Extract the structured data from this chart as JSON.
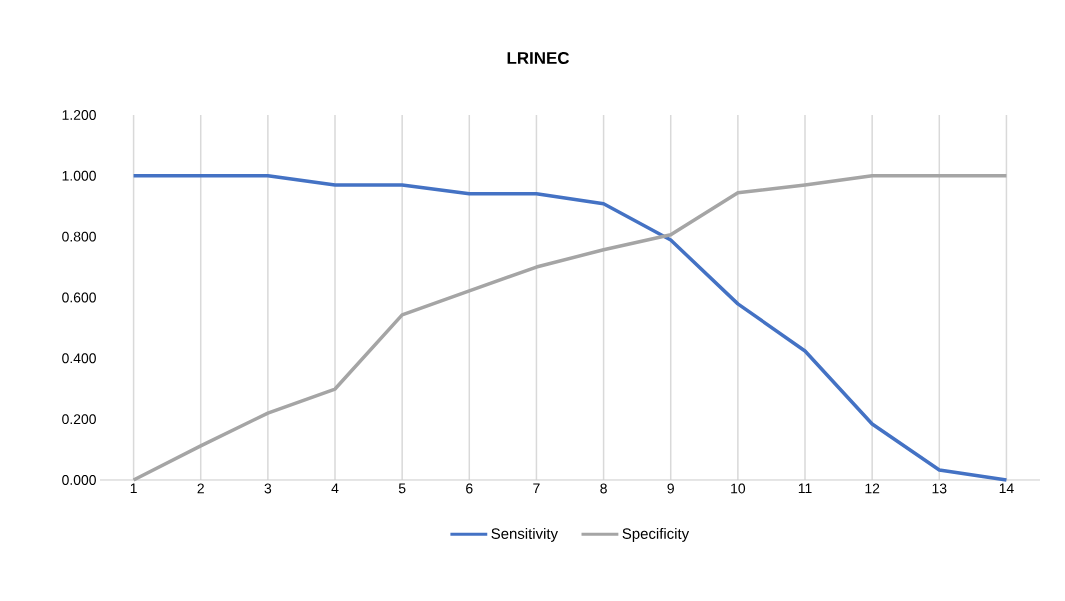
{
  "chart_data": {
    "type": "line",
    "title": "LRINEC",
    "categories": [
      "1",
      "2",
      "3",
      "4",
      "5",
      "6",
      "7",
      "8",
      "9",
      "10",
      "11",
      "12",
      "13",
      "14"
    ],
    "series": [
      {
        "name": "Sensitivity",
        "color": "#4472c4",
        "values": [
          1.0,
          1.0,
          1.0,
          0.97,
          0.97,
          0.941,
          0.941,
          0.908,
          0.789,
          0.579,
          0.424,
          0.184,
          0.033,
          0.0
        ]
      },
      {
        "name": "Specificity",
        "color": "#a5a5a5",
        "values": [
          0.0,
          0.112,
          0.22,
          0.299,
          0.543,
          0.622,
          0.7,
          0.757,
          0.806,
          0.944,
          0.97,
          1.0,
          1.0,
          1.0
        ]
      }
    ],
    "ylim": [
      0,
      1.2
    ],
    "yticks": [
      {
        "value": 0,
        "label": "0.000"
      },
      {
        "value": 0.2,
        "label": "0.200"
      },
      {
        "value": 0.4,
        "label": "0.400"
      },
      {
        "value": 0.6,
        "label": "0.600"
      },
      {
        "value": 0.8,
        "label": "0.800"
      },
      {
        "value": 1.0,
        "label": "1.000"
      },
      {
        "value": 1.2,
        "label": "1.200"
      }
    ],
    "grid": "x",
    "legend": "bottom",
    "marker": "none",
    "line_style": "solid"
  }
}
